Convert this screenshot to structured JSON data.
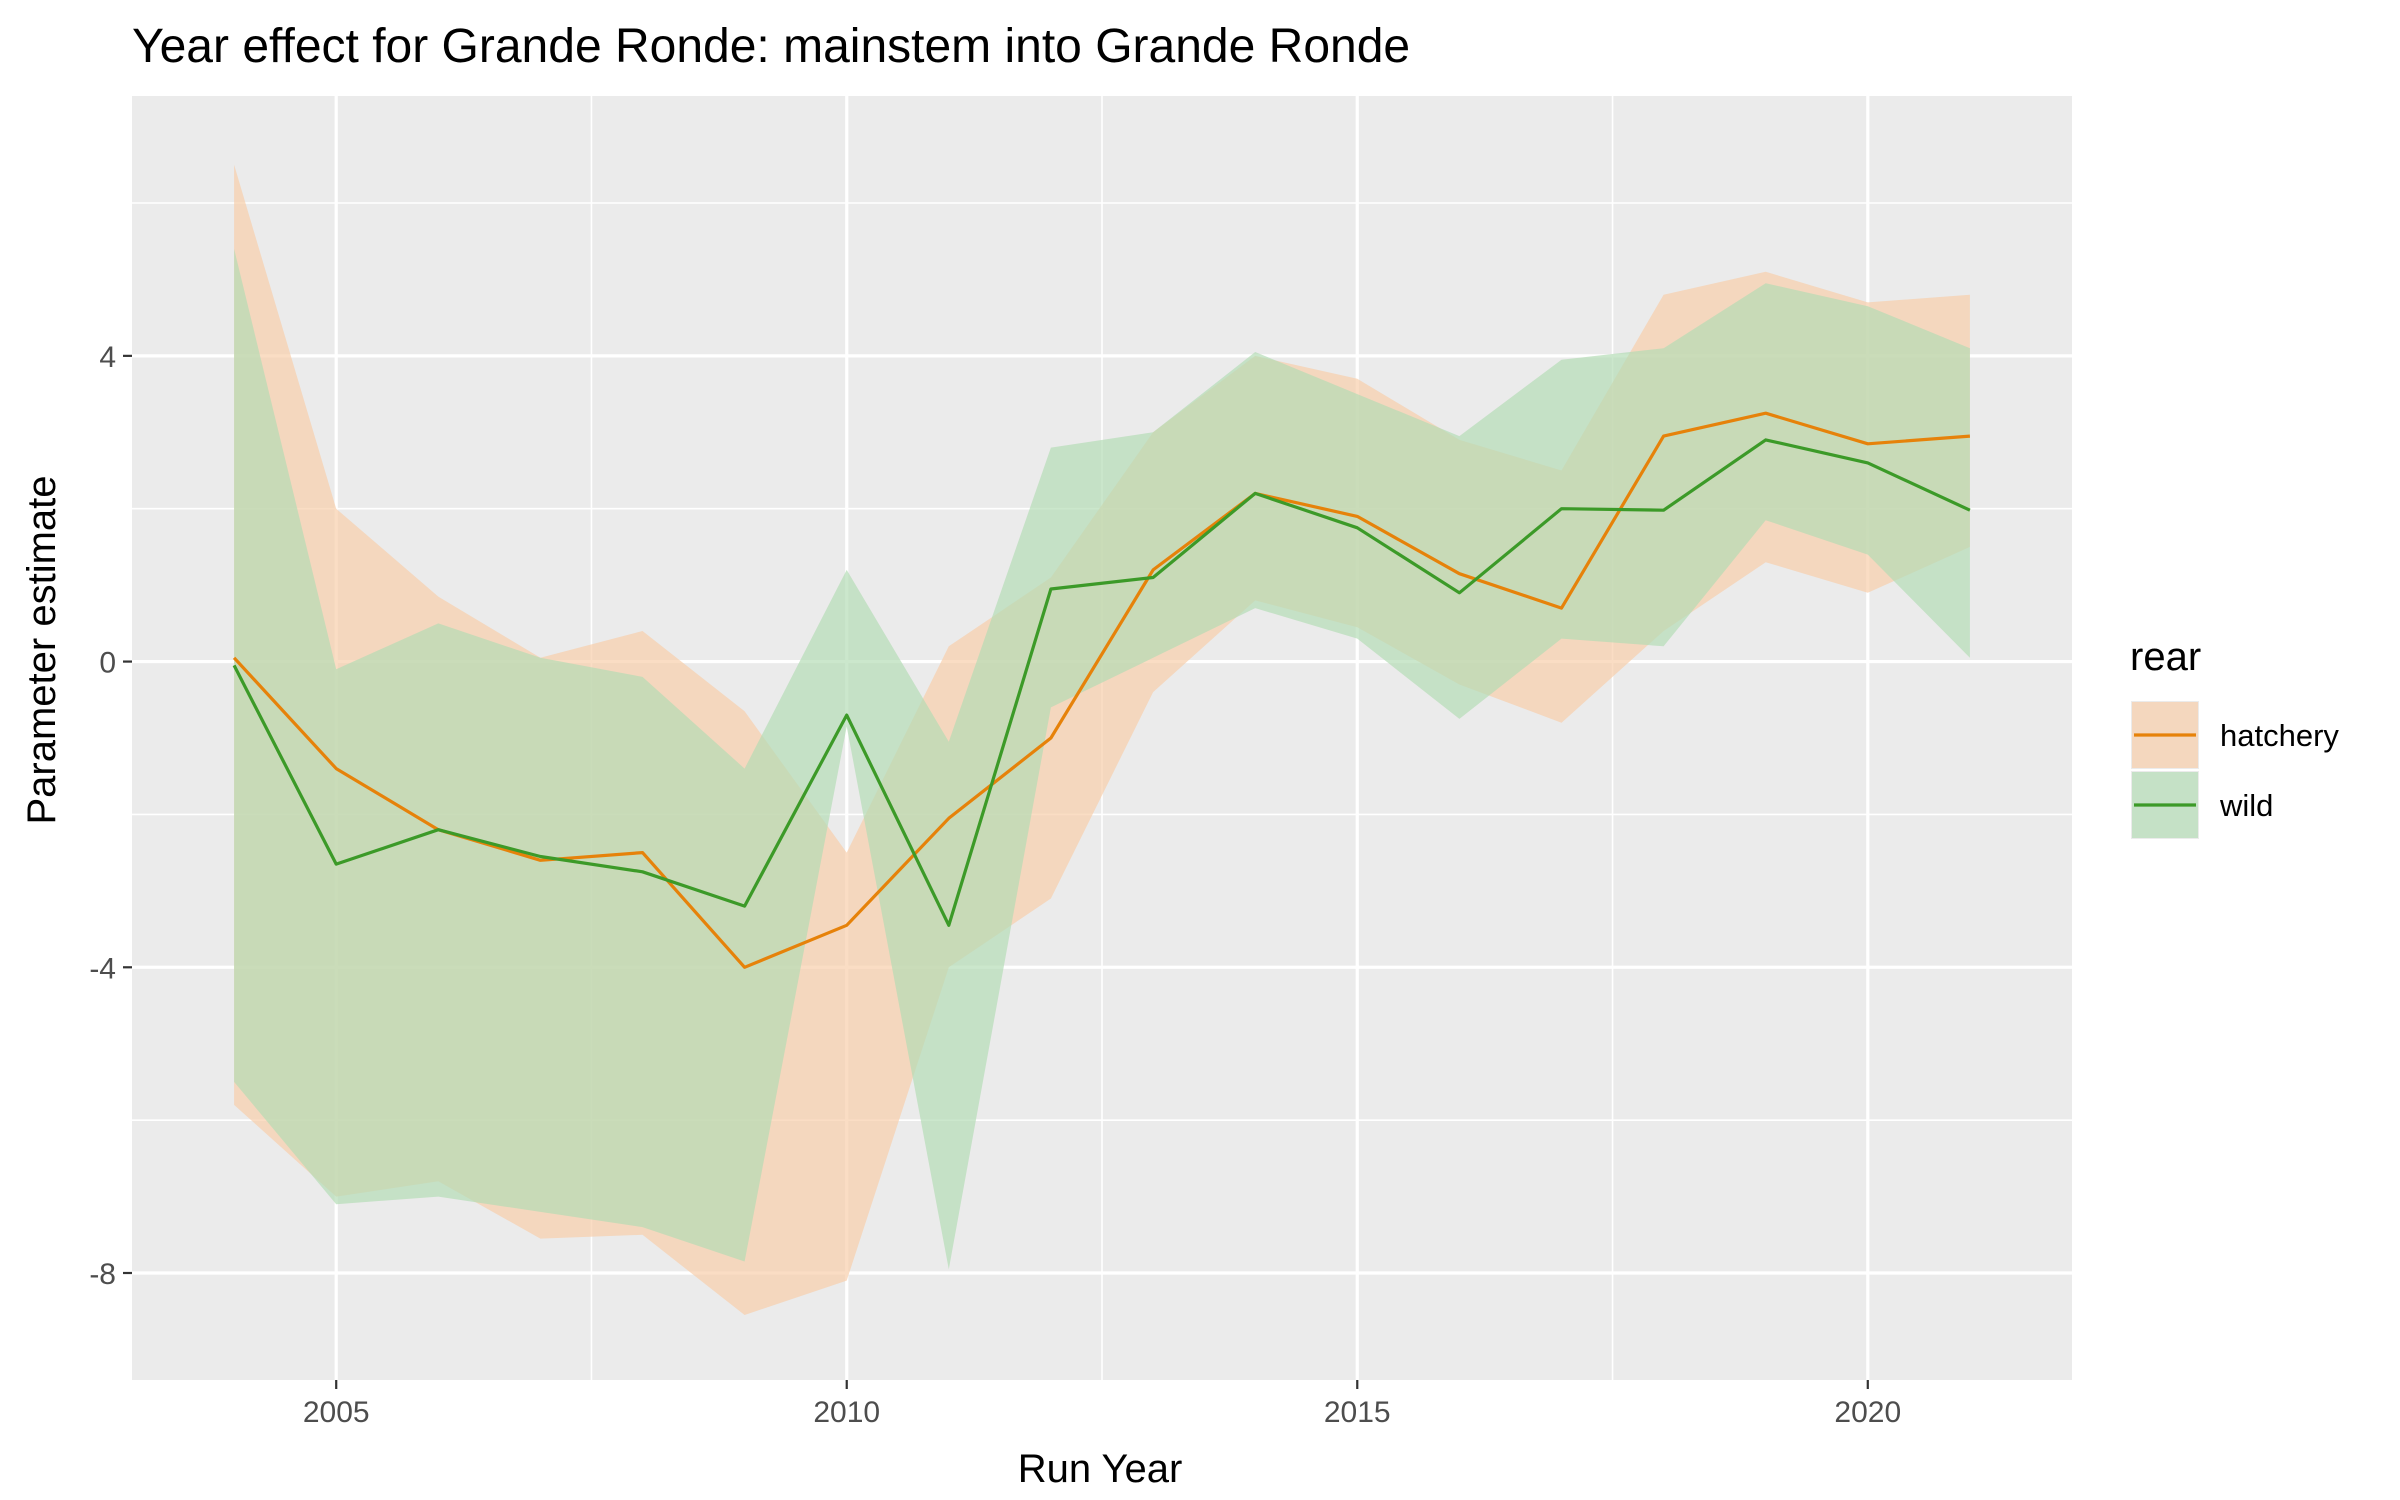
{
  "chart_data": {
    "type": "line",
    "title": "Year effect for Grande Ronde: mainstem into Grande Ronde",
    "xlabel": "Run Year",
    "ylabel": "Parameter estimate",
    "xlim": [
      2003,
      2022
    ],
    "ylim": [
      -9.4,
      7.4
    ],
    "x_ticks": [
      2005,
      2010,
      2015,
      2020
    ],
    "x_tick_labels": [
      "2005",
      "2010",
      "2015",
      "2020"
    ],
    "y_ticks": [
      -8,
      -4,
      0,
      4
    ],
    "y_tick_labels": [
      "-8",
      "-4",
      "0",
      "4"
    ],
    "grid": true,
    "legend": {
      "title": "rear",
      "placement": "right"
    },
    "x": [
      2004,
      2005,
      2006,
      2007,
      2008,
      2009,
      2010,
      2011,
      2012,
      2013,
      2014,
      2015,
      2016,
      2017,
      2018,
      2019,
      2020,
      2021
    ],
    "series": [
      {
        "name": "hatchery",
        "line_color": "#E6820A",
        "band_color": "#F7CDA8",
        "values": [
          0.05,
          -1.4,
          -2.2,
          -2.6,
          -2.5,
          -4.0,
          -3.45,
          -2.05,
          -1.0,
          1.2,
          2.2,
          1.9,
          1.15,
          0.7,
          2.95,
          3.25,
          2.85,
          2.95
        ],
        "lower": [
          -5.8,
          -7.0,
          -6.8,
          -7.55,
          -7.5,
          -8.55,
          -8.1,
          -4.0,
          -3.1,
          -0.4,
          0.8,
          0.45,
          -0.3,
          -0.8,
          0.4,
          1.3,
          0.9,
          1.5
        ],
        "upper": [
          6.5,
          2.0,
          0.85,
          0.05,
          0.4,
          -0.65,
          -2.5,
          0.2,
          1.1,
          3.0,
          4.0,
          3.7,
          2.9,
          2.5,
          4.8,
          5.1,
          4.7,
          4.8
        ]
      },
      {
        "name": "wild",
        "line_color": "#3C9A28",
        "band_color": "#B2DBB4",
        "values": [
          -0.05,
          -2.65,
          -2.2,
          -2.55,
          -2.75,
          -3.2,
          -0.7,
          -3.45,
          0.95,
          1.1,
          2.2,
          1.75,
          0.9,
          2.0,
          1.98,
          2.9,
          2.6,
          1.98
        ],
        "lower": [
          -5.5,
          -7.1,
          -7.0,
          -7.2,
          -7.4,
          -7.85,
          -0.85,
          -7.95,
          -0.6,
          0.05,
          0.7,
          0.3,
          -0.75,
          0.3,
          0.2,
          1.85,
          1.4,
          0.05
        ],
        "upper": [
          5.4,
          -0.1,
          0.5,
          0.05,
          -0.2,
          -1.4,
          1.2,
          -1.05,
          2.8,
          3.0,
          4.05,
          3.5,
          2.95,
          3.95,
          4.1,
          4.95,
          4.65,
          4.1
        ]
      }
    ]
  }
}
